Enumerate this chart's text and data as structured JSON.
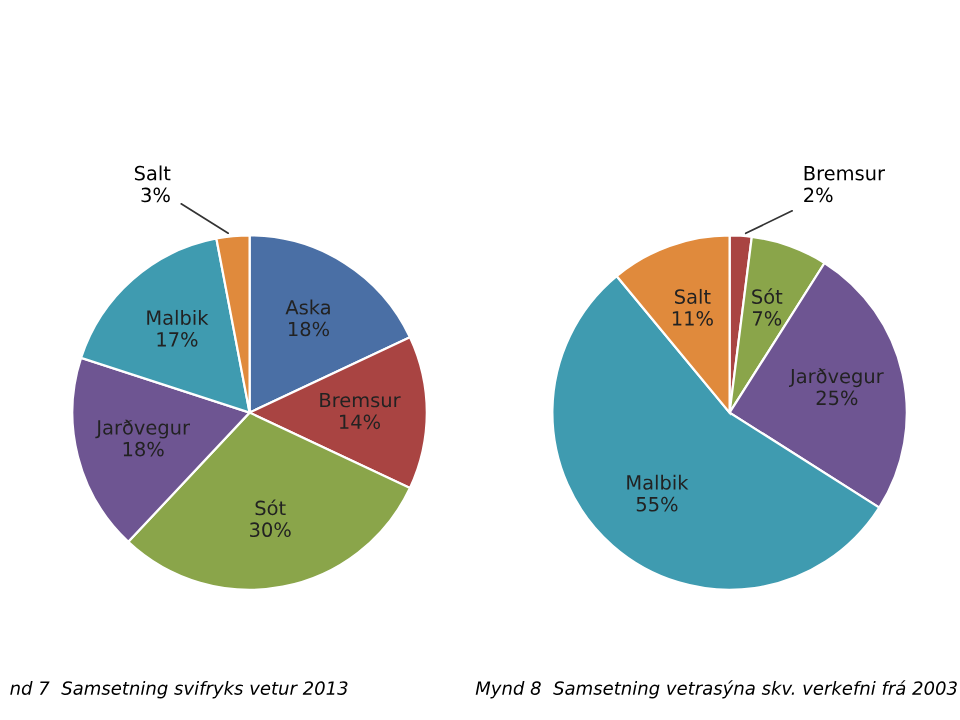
{
  "chart_data": [
    {
      "type": "pie",
      "categories": [
        "Aska",
        "Bremsur",
        "Sót",
        "Jarðvegur",
        "Malbik",
        "Salt"
      ],
      "values": [
        18,
        14,
        30,
        18,
        17,
        3
      ],
      "colors": [
        "#4a6fa5",
        "#a94442",
        "#8aa54a",
        "#6e5592",
        "#3f9bb0",
        "#e08a3c"
      ],
      "value_labels": [
        "18%",
        "14%",
        "30%",
        "18%",
        "17%",
        "3%"
      ],
      "annotations": [
        "nd 7  Samsetning svifryks vetur 2013"
      ]
    },
    {
      "type": "pie",
      "categories": [
        "Bremsur",
        "Sót",
        "Jarðvegur",
        "Malbik",
        "Salt"
      ],
      "values": [
        2,
        7,
        25,
        55,
        11
      ],
      "colors": [
        "#a94442",
        "#8aa54a",
        "#6e5592",
        "#3f9bb0",
        "#e08a3c"
      ],
      "value_labels": [
        "2%",
        "7%",
        "25%",
        "55%",
        "11%"
      ],
      "annotations": [
        "Mynd 8  Samsetning vetrasýna skv. verkefni frá 2003"
      ]
    }
  ]
}
